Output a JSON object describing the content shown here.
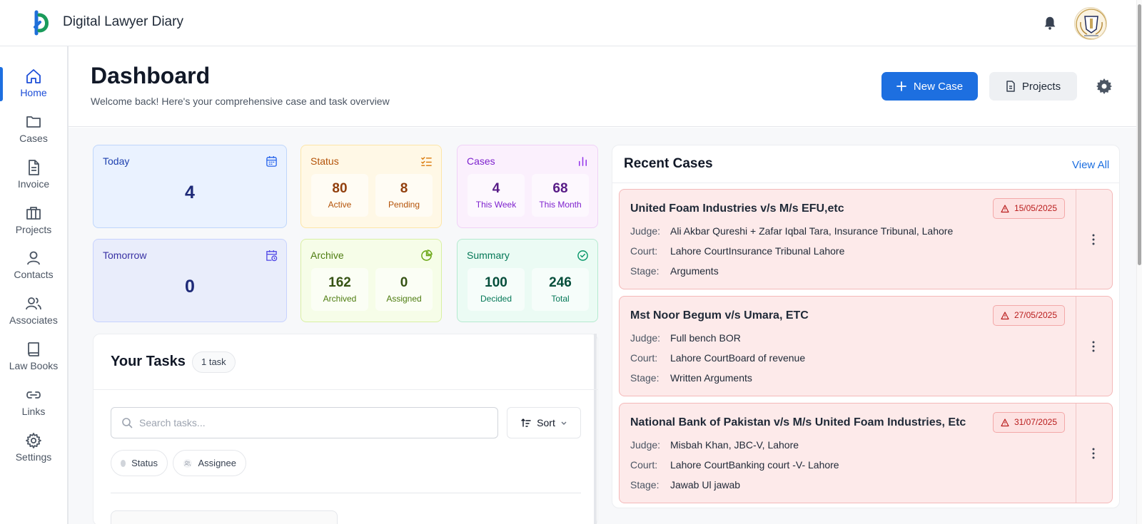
{
  "app": {
    "title": "Digital Lawyer Diary"
  },
  "sidebar": {
    "items": [
      {
        "label": "Home",
        "icon": "home-icon",
        "active": true
      },
      {
        "label": "Cases",
        "icon": "folder-icon"
      },
      {
        "label": "Invoice",
        "icon": "document-icon"
      },
      {
        "label": "Projects",
        "icon": "briefcase-icon"
      },
      {
        "label": "Contacts",
        "icon": "user-icon"
      },
      {
        "label": "Associates",
        "icon": "users-icon"
      },
      {
        "label": "Law Books",
        "icon": "book-icon"
      },
      {
        "label": "Links",
        "icon": "link-icon"
      },
      {
        "label": "Settings",
        "icon": "gear-icon"
      }
    ]
  },
  "header": {
    "title": "Dashboard",
    "subtitle": "Welcome back! Here's your comprehensive case and task overview",
    "new_case_label": "New Case",
    "projects_label": "Projects"
  },
  "stats": {
    "today": {
      "title": "Today",
      "value": "4"
    },
    "tomorrow": {
      "title": "Tomorrow",
      "value": "0"
    },
    "status": {
      "title": "Status",
      "a_value": "80",
      "a_label": "Active",
      "b_value": "8",
      "b_label": "Pending"
    },
    "cases": {
      "title": "Cases",
      "a_value": "4",
      "a_label": "This Week",
      "b_value": "68",
      "b_label": "This Month"
    },
    "archive": {
      "title": "Archive",
      "a_value": "162",
      "a_label": "Archived",
      "b_value": "0",
      "b_label": "Assigned"
    },
    "summary": {
      "title": "Summary",
      "a_value": "100",
      "a_label": "Decided",
      "b_value": "246",
      "b_label": "Total"
    }
  },
  "tasks": {
    "title": "Your Tasks",
    "count_badge": "1 task",
    "search_placeholder": "Search tasks...",
    "sort_label": "Sort",
    "filter_status": "Status",
    "filter_assignee": "Assignee"
  },
  "recent": {
    "title": "Recent Cases",
    "view_all": "View All",
    "labels": {
      "judge": "Judge:",
      "court": "Court:",
      "stage": "Stage:"
    },
    "cases": [
      {
        "name": "United Foam Industries v/s M/s EFU,etc",
        "date": "15/05/2025",
        "judge": "Ali Akbar Qureshi + Zafar Iqbal Tara, Insurance Tribunal, Lahore",
        "court": "Lahore CourtInsurance Tribunal Lahore",
        "stage": "Arguments"
      },
      {
        "name": "Mst Noor Begum v/s Umara, ETC",
        "date": "27/05/2025",
        "judge": "Full bench BOR",
        "court": "Lahore CourtBoard of revenue",
        "stage": "Written Arguments"
      },
      {
        "name": "National Bank of Pakistan v/s M/s United Foam Industries, Etc",
        "date": "31/07/2025",
        "judge": "Misbah Khan, JBC-V, Lahore",
        "court": "Lahore CourtBanking court -V- Lahore",
        "stage": "Jawab Ul jawab"
      }
    ]
  },
  "colors": {
    "primary": "#1d6fe0",
    "danger": "#b91c1c",
    "case_card_bg": "#fdeaea"
  }
}
